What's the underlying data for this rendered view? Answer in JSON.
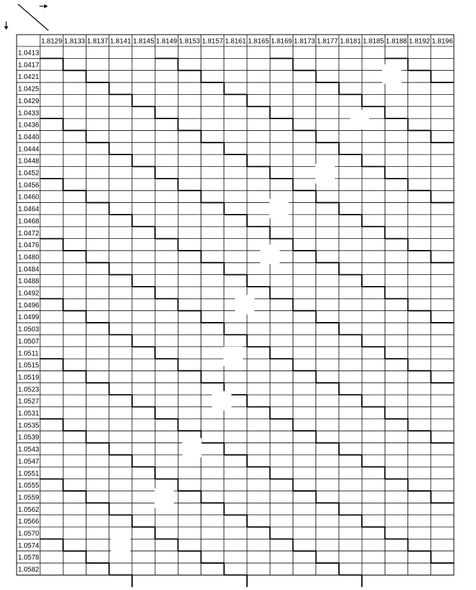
{
  "chart_data": {
    "type": "table",
    "column_headers": [
      "1.8129",
      "1.8133",
      "1.8137",
      "1.8141",
      "1.8145",
      "1.8149",
      "1.8153",
      "1.8157",
      "1.8161",
      "1.8165",
      "1.8169",
      "1.8173",
      "1.8177",
      "1.8181",
      "1.8185",
      "1.8188",
      "1.8192",
      "1.8196"
    ],
    "row_headers": [
      "1.0413",
      "1.0417",
      "1.0421",
      "1.0425",
      "1.0429",
      "1.0433",
      "1.0436",
      "1.0440",
      "1.0444",
      "1.0448",
      "1.0452",
      "1.0456",
      "1.0460",
      "1.0464",
      "1.0468",
      "1.0472",
      "1.0476",
      "1.0480",
      "1.0484",
      "1.0488",
      "1.0492",
      "1.0496",
      "1.0499",
      "1.0503",
      "1.0507",
      "1.0511",
      "1.0515",
      "1.0519",
      "1.0523",
      "1.0527",
      "1.0531",
      "1.0535",
      "1.0539",
      "1.0543",
      "1.0547",
      "1.0551",
      "1.0555",
      "1.0559",
      "1.0562",
      "1.0566",
      "1.0570",
      "1.0574",
      "1.0578",
      "1.0582"
    ],
    "staircase": {
      "rows_per_column_step": 1,
      "period_rows": 5,
      "period_rows_from_column_6": 5
    },
    "corner_arrows": [
      "right-arrow-icon",
      "down-arrow-icon",
      "diagonal-line"
    ]
  },
  "colors": {
    "line": "#000000",
    "background": "#ffffff",
    "gap": "#ffffff"
  }
}
